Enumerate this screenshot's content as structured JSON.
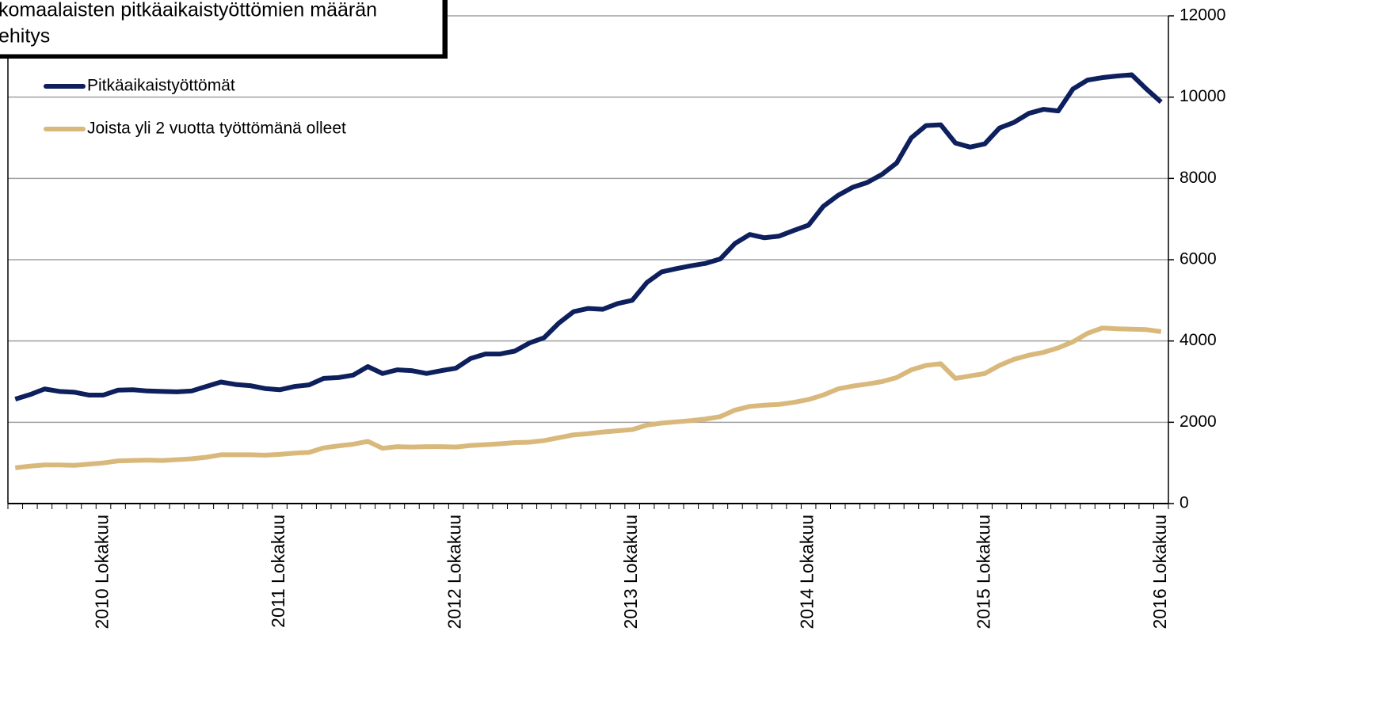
{
  "chart_data": {
    "type": "line",
    "title_lines": [
      "komaalaisten pitkäaikaistyöttömien määrän",
      "ehitys"
    ],
    "categories": [
      null,
      null,
      null,
      null,
      null,
      null,
      "2010 Lokakuu",
      null,
      null,
      null,
      null,
      null,
      null,
      null,
      null,
      null,
      null,
      null,
      "2011 Lokakuu",
      null,
      null,
      null,
      null,
      null,
      null,
      null,
      null,
      null,
      null,
      null,
      "2012 Lokakuu",
      null,
      null,
      null,
      null,
      null,
      null,
      null,
      null,
      null,
      null,
      null,
      "2013 Lokakuu",
      null,
      null,
      null,
      null,
      null,
      null,
      null,
      null,
      null,
      null,
      null,
      "2014 Lokakuu",
      null,
      null,
      null,
      null,
      null,
      null,
      null,
      null,
      null,
      null,
      null,
      "2015 Lokakuu",
      null,
      null,
      null,
      null,
      null,
      null,
      null,
      null,
      null,
      null,
      null,
      "2016 Lokakuu"
    ],
    "series": [
      {
        "name": "Pitkäaikaistyöttömät",
        "color": "#0d1f5c",
        "values": [
          2570,
          2680,
          2820,
          2760,
          2740,
          2670,
          2670,
          2790,
          2800,
          2770,
          2760,
          2750,
          2770,
          2880,
          2990,
          2930,
          2900,
          2830,
          2800,
          2880,
          2920,
          3080,
          3100,
          3160,
          3370,
          3200,
          3290,
          3270,
          3200,
          3270,
          3330,
          3570,
          3680,
          3680,
          3750,
          3950,
          4080,
          4440,
          4720,
          4800,
          4780,
          4920,
          5000,
          5440,
          5700,
          5780,
          5850,
          5910,
          6020,
          6400,
          6620,
          6540,
          6580,
          6720,
          6850,
          7310,
          7580,
          7780,
          7900,
          8100,
          8380,
          9000,
          9300,
          9320,
          8870,
          8770,
          8850,
          9240,
          9380,
          9600,
          9700,
          9660,
          10200,
          10420,
          10480,
          10520,
          10550,
          10200,
          9880
        ]
      },
      {
        "name": "Joista yli 2 vuotta työttömänä olleet",
        "color": "#d9b87c",
        "values": [
          880,
          920,
          950,
          950,
          940,
          970,
          1000,
          1050,
          1060,
          1070,
          1060,
          1080,
          1100,
          1140,
          1200,
          1200,
          1200,
          1190,
          1210,
          1240,
          1260,
          1370,
          1420,
          1460,
          1530,
          1360,
          1400,
          1390,
          1400,
          1400,
          1390,
          1430,
          1450,
          1470,
          1500,
          1510,
          1550,
          1620,
          1690,
          1720,
          1760,
          1790,
          1820,
          1930,
          1980,
          2010,
          2040,
          2080,
          2140,
          2300,
          2390,
          2420,
          2440,
          2490,
          2560,
          2670,
          2820,
          2890,
          2940,
          3000,
          3100,
          3290,
          3400,
          3440,
          3080,
          3140,
          3200,
          3400,
          3550,
          3650,
          3720,
          3830,
          3980,
          4190,
          4320,
          4300,
          4290,
          4280,
          4230
        ]
      }
    ],
    "ylim": [
      0,
      12000
    ],
    "yticks": [
      0,
      2000,
      4000,
      6000,
      8000,
      10000,
      12000
    ],
    "grid": true,
    "legend": "upper left"
  }
}
